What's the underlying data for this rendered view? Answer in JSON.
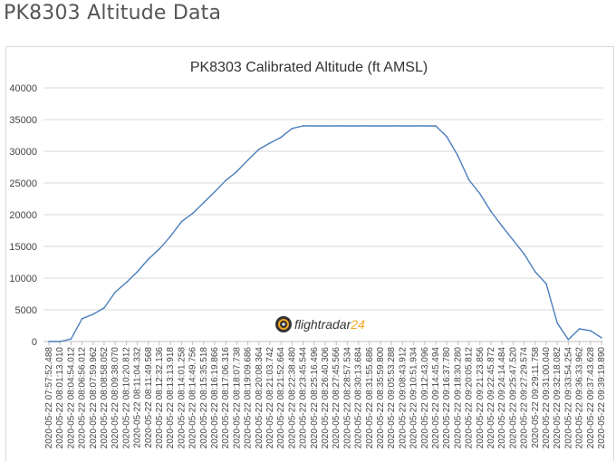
{
  "page": {
    "title": "PK8303 Altitude Data"
  },
  "watermark": {
    "text_main": "flightradar",
    "text_num": "24",
    "icon": "radar-icon",
    "color_main": "#333333",
    "color_num": "#f5a623"
  },
  "chart_data": {
    "type": "line",
    "title": "PK8303 Calibrated Altitude (ft AMSL)",
    "xlabel": "",
    "ylabel": "",
    "ylim": [
      0,
      40000
    ],
    "yticks": [
      "0",
      "5000",
      "10000",
      "15000",
      "20000",
      "25000",
      "30000",
      "35000",
      "40000"
    ],
    "grid": true,
    "legend": "none",
    "color": "#4a7ebb",
    "categories": [
      "2020-05-22 07:57:52.488",
      "2020-05-22 08:01:13.010",
      "2020-05-22 08:04:54.012",
      "2020-05-22 08:06:56.012",
      "2020-05-22 08:07:59.962",
      "2020-05-22 08:08:58.052",
      "2020-05-22 08:09:38.070",
      "2020-05-22 08:10:20.812",
      "2020-05-22 08:11:04.332",
      "2020-05-22 08:11:49.568",
      "2020-05-22 08:12:32.136",
      "2020-05-22 08:13:13.918",
      "2020-05-22 08:14:01.258",
      "2020-05-22 08:14:49.756",
      "2020-05-22 08:15:35.518",
      "2020-05-22 08:16:19.866",
      "2020-05-22 08:17:06.316",
      "2020-05-22 08:18:07.738",
      "2020-05-22 08:19:09.686",
      "2020-05-22 08:20:08.364",
      "2020-05-22 08:21:03.742",
      "2020-05-22 08:21:52.664",
      "2020-05-22 08:22:38.480",
      "2020-05-22 08:23:45.544",
      "2020-05-22 08:25:16.496",
      "2020-05-22 08:26:40.306",
      "2020-05-22 08:27:45.566",
      "2020-05-22 08:28:57.534",
      "2020-05-22 08:30:13.684",
      "2020-05-22 08:31:55.686",
      "2020-05-22 08:35:59.800",
      "2020-05-22 09:05:53.288",
      "2020-05-22 09:08:43.912",
      "2020-05-22 09:10:51.934",
      "2020-05-22 09:12:43.096",
      "2020-05-22 09:14:45.494",
      "2020-05-22 09:16:37.780",
      "2020-05-22 09:18:30.280",
      "2020-05-22 09:20:05.812",
      "2020-05-22 09:21:23.856",
      "2020-05-22 09:22:45.872",
      "2020-05-22 09:24:14.484",
      "2020-05-22 09:25:47.520",
      "2020-05-22 09:27:29.574",
      "2020-05-22 09:29:11.758",
      "2020-05-22 09:31:00.040",
      "2020-05-22 09:32:18.082",
      "2020-05-22 09:33:54.254",
      "2020-05-22 09:36:33.962",
      "2020-05-22 09:37:43.628",
      "2020-05-22 09:39:19.890"
    ],
    "values": [
      0,
      0,
      400,
      3600,
      4300,
      5300,
      7800,
      9300,
      11000,
      13000,
      14600,
      16600,
      18900,
      20200,
      21900,
      23600,
      25400,
      26800,
      28600,
      30300,
      31300,
      32200,
      33600,
      34000,
      34000,
      34000,
      34000,
      34000,
      34000,
      34000,
      34000,
      34000,
      34000,
      34000,
      34000,
      34000,
      32300,
      29300,
      25500,
      23300,
      20500,
      18200,
      16000,
      13800,
      11000,
      9100,
      2900,
      300,
      2000,
      1700,
      600
    ]
  }
}
